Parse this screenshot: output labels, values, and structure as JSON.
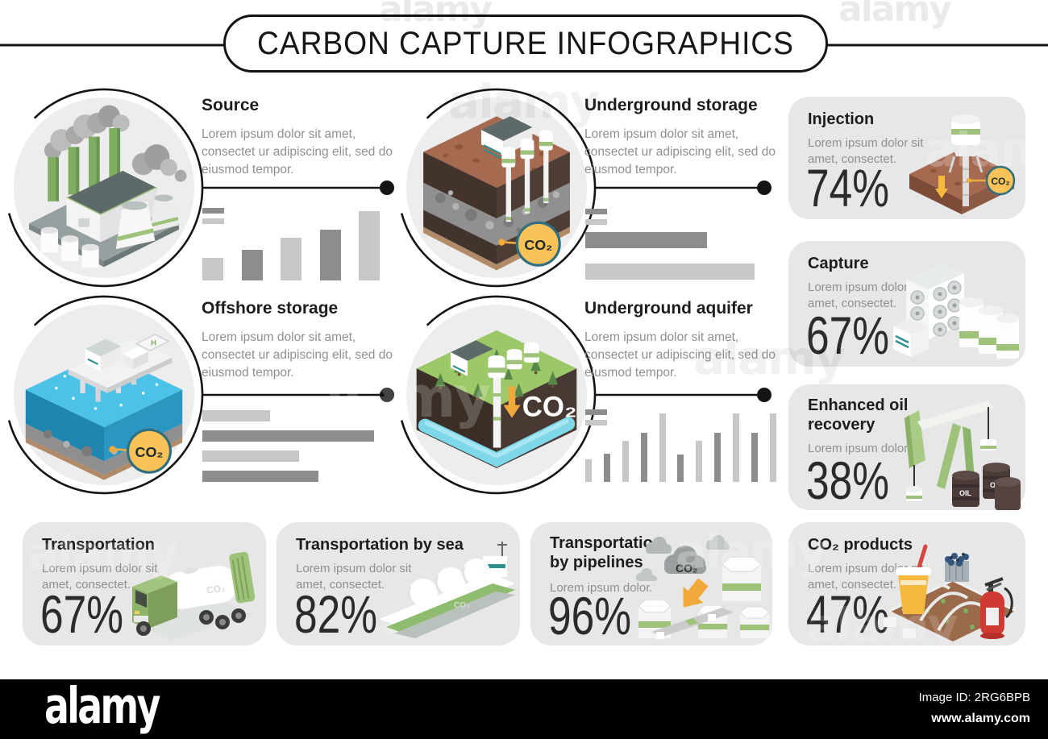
{
  "title": "CARBON CAPTURE INFOGRAPHICS",
  "watermark": {
    "text": "alamy"
  },
  "badges": {
    "co2": "CO₂",
    "oil": "OIL",
    "heli": "H"
  },
  "sections": {
    "source": {
      "title": "Source",
      "desc": "Lorem ipsum dolor sit amet, consectet ur adipiscing elit, sed do eiusmod tempor."
    },
    "underground_storage": {
      "title": "Underground storage",
      "desc": "Lorem ipsum dolor sit amet, consectet ur adipiscing elit, sed do eiusmod tempor."
    },
    "offshore_storage": {
      "title": "Offshore storage",
      "desc": "Lorem ipsum dolor sit amet, consectet ur adipiscing elit, sed do eiusmod tempor."
    },
    "underground_aquifer": {
      "title": "Underground aquifer",
      "desc": "Lorem ipsum dolor sit amet, consectet ur adipiscing elit, sed do eiusmod tempor."
    }
  },
  "cards": {
    "injection": {
      "title": "Injection",
      "desc": "Lorem ipsum dolor sit amet, consectet.",
      "value": "74%"
    },
    "capture": {
      "title": "Capture",
      "desc": "Lorem ipsum dolor sit amet, consectet.",
      "value": "67%"
    },
    "eor": {
      "title": "Enhanced oil recovery",
      "desc": "Lorem ipsum dolor.",
      "value": "38%"
    },
    "transportation": {
      "title": "Transportation",
      "desc": "Lorem ipsum dolor sit amet, consectet.",
      "value": "67%"
    },
    "transportation_sea": {
      "title": "Transportation by sea",
      "desc": "Lorem ipsum dolor sit amet, consectet.",
      "value": "82%"
    },
    "transportation_pipelines": {
      "title": "Transportation by pipelines",
      "desc": "Lorem ipsum dolor.",
      "value": "96%"
    },
    "co2_products": {
      "title": "CO₂ products",
      "desc": "Lorem ipsum dolor sit amet, consectet.",
      "value": "47%"
    }
  },
  "colors": {
    "bar_light": "#c7c7c7",
    "bar_dark": "#8d8d8d",
    "card_bg": "#e7e7e7",
    "accent_green": "#9ec27a",
    "co2_badge_fill": "#f7c257",
    "co2_badge_stroke": "#2e6f80",
    "arrow_orange": "#f2a93b"
  },
  "chart_data": [
    {
      "id": "source-bars",
      "type": "bar",
      "title": "placeholder bar chart (unlabeled)",
      "values": [
        33,
        44,
        62,
        73,
        100
      ],
      "colors": [
        "#c7c7c7",
        "#8d8d8d"
      ],
      "bar_thickness": 26
    },
    {
      "id": "storage-bars",
      "type": "hbar",
      "title": "placeholder horizontal bars (unlabeled)",
      "values": [
        72,
        100
      ],
      "colors": [
        "#8d8d8d",
        "#c7c7c7"
      ],
      "bar_thickness": 20
    },
    {
      "id": "offshore-bars",
      "type": "hbar",
      "title": "placeholder horizontal bars (unlabeled)",
      "values": [
        38,
        96,
        54,
        65
      ],
      "colors": [
        "#c7c7c7",
        "#8d8d8d"
      ],
      "bar_thickness": 14
    },
    {
      "id": "aquifer-bars",
      "type": "bar",
      "title": "placeholder bar chart (unlabeled)",
      "values": [
        33,
        41,
        60,
        72,
        100,
        40,
        60,
        72,
        100,
        72,
        100
      ],
      "colors": [
        "#c7c7c7",
        "#8d8d8d"
      ],
      "bar_thickness": 8
    }
  ],
  "footer": {
    "logo": "alamy",
    "image_id": "Image ID: 2RG6BPB",
    "site": "www.alamy.com"
  }
}
